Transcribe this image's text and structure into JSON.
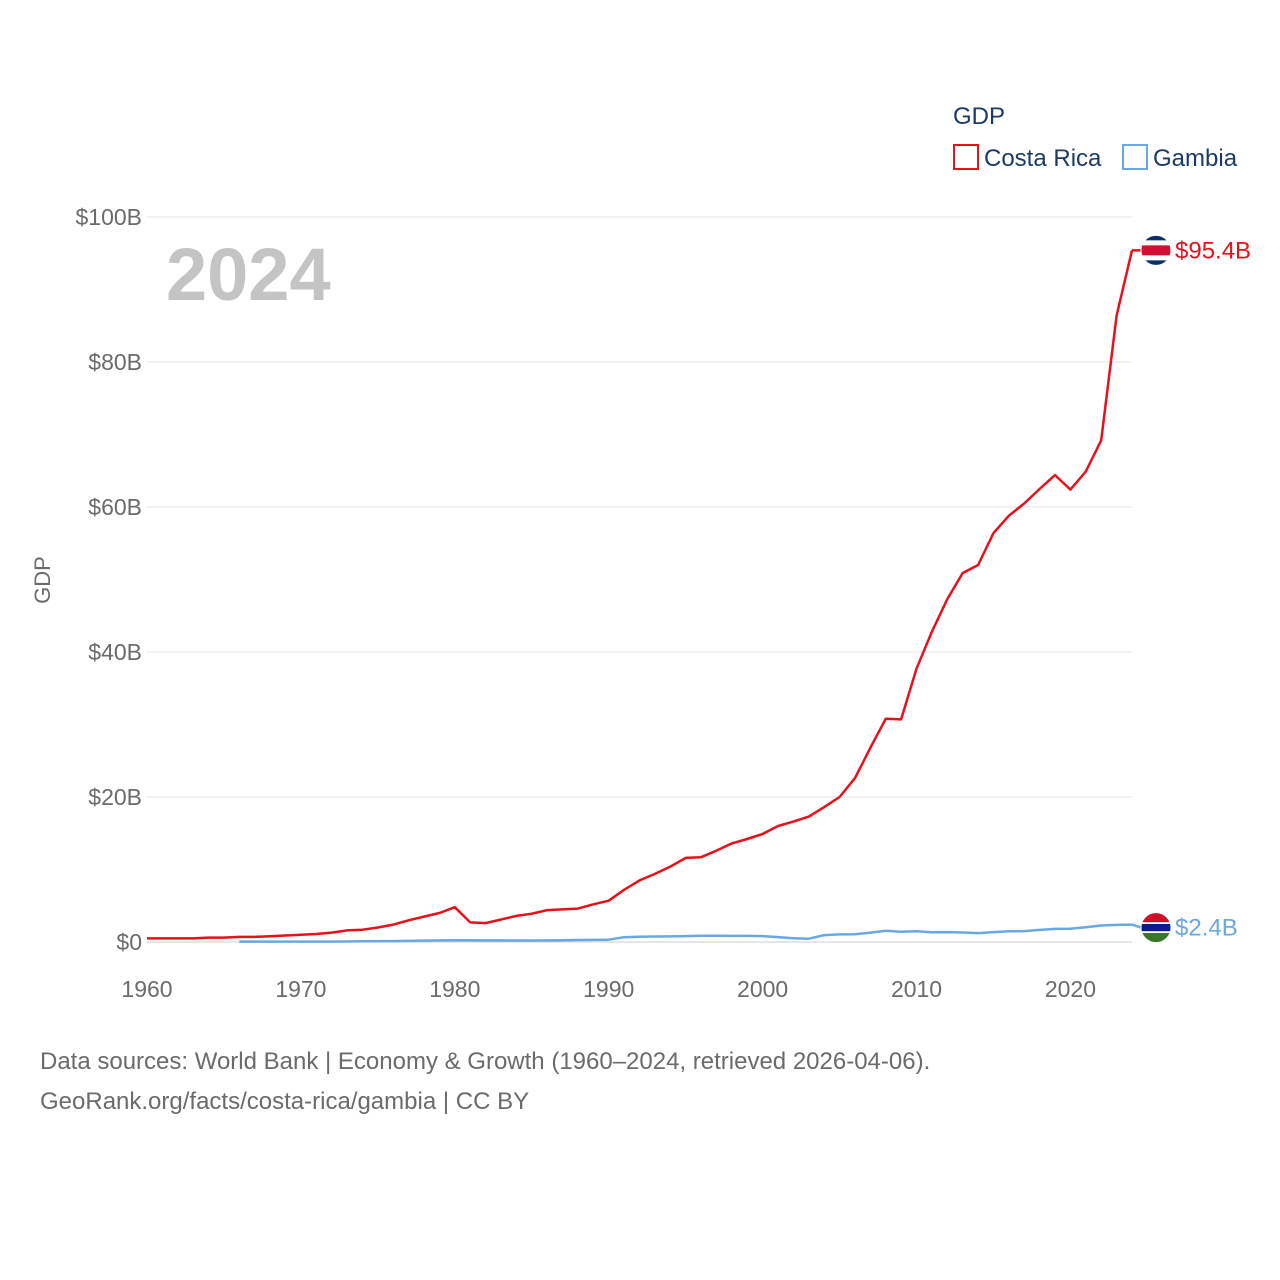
{
  "chart_data": {
    "type": "line",
    "title": "",
    "year_label": "2024",
    "xlabel": "",
    "ylabel": "GDP",
    "xlim": [
      1960,
      2024
    ],
    "ylim": [
      0,
      100
    ],
    "x_ticks": [
      1960,
      1970,
      1980,
      1990,
      2000,
      2010,
      2020
    ],
    "x_tick_labels": [
      "1960",
      "1970",
      "1980",
      "1990",
      "2000",
      "2010",
      "2020"
    ],
    "y_ticks": [
      0,
      20,
      40,
      60,
      80,
      100
    ],
    "y_tick_labels": [
      "$0",
      "$20B",
      "$40B",
      "$60B",
      "$80B",
      "$100B"
    ],
    "grid": true,
    "legend": {
      "title": "GDP",
      "position": "top-right"
    },
    "series": [
      {
        "name": "Costa Rica",
        "color": "#e8101b",
        "end_label": "$95.4B",
        "flag": "costa-rica-flag",
        "x": [
          1960,
          1961,
          1962,
          1963,
          1964,
          1965,
          1966,
          1967,
          1968,
          1969,
          1970,
          1971,
          1972,
          1973,
          1974,
          1975,
          1976,
          1977,
          1978,
          1979,
          1980,
          1981,
          1982,
          1983,
          1984,
          1985,
          1986,
          1987,
          1988,
          1989,
          1990,
          1991,
          1992,
          1993,
          1994,
          1995,
          1996,
          1997,
          1998,
          1999,
          2000,
          2001,
          2002,
          2003,
          2004,
          2005,
          2006,
          2007,
          2008,
          2009,
          2010,
          2011,
          2012,
          2013,
          2014,
          2015,
          2016,
          2017,
          2018,
          2019,
          2020,
          2021,
          2022,
          2023,
          2024
        ],
        "values": [
          0.5,
          0.5,
          0.5,
          0.5,
          0.6,
          0.6,
          0.7,
          0.7,
          0.8,
          0.9,
          1.0,
          1.1,
          1.3,
          1.6,
          1.7,
          2.0,
          2.4,
          3.0,
          3.5,
          4.0,
          4.8,
          2.7,
          2.6,
          3.1,
          3.6,
          3.9,
          4.4,
          4.5,
          4.6,
          5.2,
          5.7,
          7.2,
          8.5,
          9.4,
          10.4,
          11.6,
          11.7,
          12.6,
          13.6,
          14.2,
          14.9,
          16.0,
          16.6,
          17.3,
          18.6,
          20.0,
          22.6,
          26.8,
          30.8,
          30.7,
          37.7,
          42.8,
          47.3,
          50.9,
          52.0,
          56.4,
          58.8,
          60.5,
          62.5,
          64.4,
          62.4,
          64.9,
          69.2,
          86.4,
          95.4
        ]
      },
      {
        "name": "Gambia",
        "color": "#6aa8e4",
        "end_label": "$2.4B",
        "flag": "gambia-flag",
        "x": [
          1966,
          1967,
          1968,
          1969,
          1970,
          1971,
          1972,
          1973,
          1974,
          1975,
          1976,
          1977,
          1978,
          1979,
          1980,
          1981,
          1982,
          1983,
          1984,
          1985,
          1986,
          1987,
          1988,
          1989,
          1990,
          1991,
          1992,
          1993,
          1994,
          1995,
          1996,
          1997,
          1998,
          1999,
          2000,
          2001,
          2002,
          2003,
          2004,
          2005,
          2006,
          2007,
          2008,
          2009,
          2010,
          2011,
          2012,
          2013,
          2014,
          2015,
          2016,
          2017,
          2018,
          2019,
          2020,
          2021,
          2022,
          2023,
          2024
        ],
        "values": [
          0.05,
          0.05,
          0.05,
          0.05,
          0.05,
          0.05,
          0.06,
          0.07,
          0.09,
          0.11,
          0.13,
          0.15,
          0.19,
          0.22,
          0.24,
          0.23,
          0.22,
          0.22,
          0.21,
          0.2,
          0.22,
          0.23,
          0.27,
          0.29,
          0.32,
          0.66,
          0.72,
          0.76,
          0.77,
          0.81,
          0.85,
          0.85,
          0.84,
          0.84,
          0.82,
          0.68,
          0.53,
          0.45,
          0.95,
          1.05,
          1.08,
          1.29,
          1.54,
          1.42,
          1.48,
          1.35,
          1.36,
          1.31,
          1.23,
          1.36,
          1.47,
          1.51,
          1.67,
          1.81,
          1.83,
          2.04,
          2.27,
          2.36,
          2.4
        ]
      }
    ]
  },
  "footer": {
    "line1": "Data sources: World Bank | Economy & Growth (1960–2024, retrieved 2026-04-06).",
    "line2": "GeoRank.org/facts/costa-rica/gambia | CC BY"
  }
}
